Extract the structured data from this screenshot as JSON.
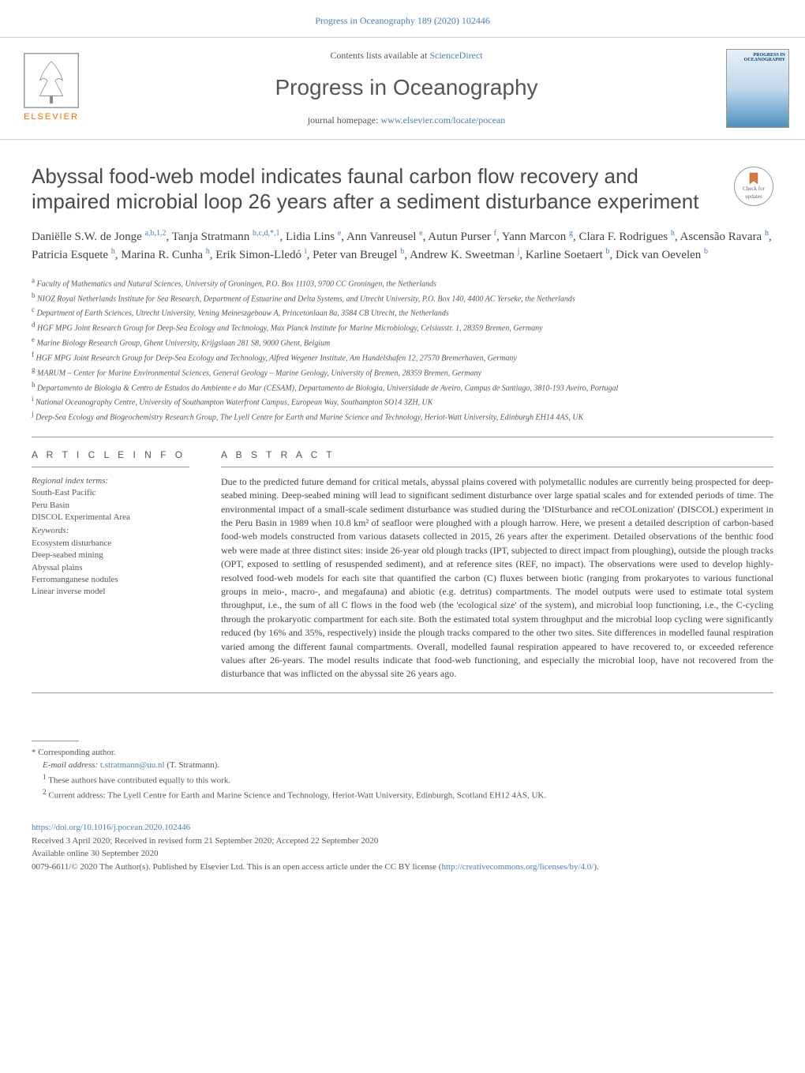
{
  "top_citation": "Progress in Oceanography 189 (2020) 102446",
  "header": {
    "contents_prefix": "Contents lists available at ",
    "contents_link": "ScienceDirect",
    "journal": "Progress in Oceanography",
    "homepage_prefix": "journal homepage: ",
    "homepage_url": "www.elsevier.com/locate/pocean",
    "publisher": "ELSEVIER",
    "cover_label": "PROGRESS IN OCEANOGRAPHY"
  },
  "updates_badge": {
    "line1": "Check for",
    "line2": "updates"
  },
  "title": "Abyssal food-web model indicates faunal carbon flow recovery and impaired microbial loop 26 years after a sediment disturbance experiment",
  "authors_html": "Daniëlle S.W. de Jonge <sup>a,b,1,2</sup>, Tanja Stratmann <sup>b,c,d,*,1</sup>, Lidia Lins <sup>e</sup>, Ann Vanreusel <sup>e</sup>, Autun Purser <sup>f</sup>, Yann Marcon <sup>g</sup>, Clara F. Rodrigues <sup>h</sup>, Ascensão Ravara <sup>h</sup>, Patricia Esquete <sup>h</sup>, Marina R. Cunha <sup>h</sup>, Erik Simon-Lledó <sup>i</sup>, Peter van Breugel <sup>b</sup>, Andrew K. Sweetman <sup>j</sup>, Karline Soetaert <sup>b</sup>, Dick van Oevelen <sup>b</sup>",
  "affiliations": [
    {
      "sup": "a",
      "text": " Faculty of Mathematics and Natural Sciences, University of Groningen, P.O. Box 11103, 9700 CC Groningen, the Netherlands"
    },
    {
      "sup": "b",
      "text": " NIOZ Royal Netherlands Institute for Sea Research, Department of Estuarine and Delta Systems, and Utrecht University, P.O. Box 140, 4400 AC Yerseke, the Netherlands"
    },
    {
      "sup": "c",
      "text": " Department of Earth Sciences, Utrecht University, Vening Meineszgebouw A, Princetonlaan 8a, 3584 CB Utrecht, the Netherlands"
    },
    {
      "sup": "d",
      "text": " HGF MPG Joint Research Group for Deep-Sea Ecology and Technology, Max Planck Institute for Marine Microbiology, Celsiusstr. 1, 28359 Bremen, Germany"
    },
    {
      "sup": "e",
      "text": " Marine Biology Research Group, Ghent University, Krijgslaan 281 S8, 9000 Ghent, Belgium"
    },
    {
      "sup": "f",
      "text": " HGF MPG Joint Research Group for Deep-Sea Ecology and Technology, Alfred Wegener Institute, Am Handelshafen 12, 27570 Bremerhaven, Germany"
    },
    {
      "sup": "g",
      "text": " MARUM – Center for Marine Environmental Sciences, General Geology – Marine Geology, University of Bremen, 28359 Bremen, Germany"
    },
    {
      "sup": "h",
      "text": " Departamento de Biologia & Centro de Estudos do Ambiente e do Mar (CESAM), Departamento de Biologia, Universidade de Aveiro, Campus de Santiago, 3810-193 Aveiro, Portugal"
    },
    {
      "sup": "i",
      "text": " National Oceanography Centre, University of Southampton Waterfront Campus, European Way, Southampton SO14 3ZH, UK"
    },
    {
      "sup": "j",
      "text": " Deep-Sea Ecology and Biogeochemistry Research Group, The Lyell Centre for Earth and Marine Science and Technology, Heriot-Watt University, Edinburgh EH14 4AS, UK"
    }
  ],
  "article_info_head": "A R T I C L E  I N F O",
  "abstract_head": "A B S T R A C T",
  "regional_label": "Regional index terms:",
  "regional_terms": [
    "South-East Pacific",
    "Peru Basin",
    "DISCOL Experimental Area"
  ],
  "keywords_label": "Keywords:",
  "keywords": [
    "Ecosystem disturbance",
    "Deep-seabed mining",
    "Abyssal plains",
    "Ferromanganese nodules",
    "Linear inverse model"
  ],
  "abstract": "Due to the predicted future demand for critical metals, abyssal plains covered with polymetallic nodules are currently being prospected for deep-seabed mining. Deep-seabed mining will lead to significant sediment disturbance over large spatial scales and for extended periods of time. The environmental impact of a small-scale sediment disturbance was studied during the 'DISturbance and reCOLonization' (DISCOL) experiment in the Peru Basin in 1989 when 10.8 km² of seafloor were ploughed with a plough harrow. Here, we present a detailed description of carbon-based food-web models constructed from various datasets collected in 2015, 26 years after the experiment. Detailed observations of the benthic food web were made at three distinct sites: inside 26-year old plough tracks (IPT, subjected to direct impact from ploughing), outside the plough tracks (OPT, exposed to settling of resuspended sediment), and at reference sites (REF, no impact). The observations were used to develop highly-resolved food-web models for each site that quantified the carbon (C) fluxes between biotic (ranging from prokaryotes to various functional groups in meio-, macro-, and megafauna) and abiotic (e.g. detritus) compartments. The model outputs were used to estimate total system throughput, i.e., the sum of all C flows in the food web (the 'ecological size' of the system), and microbial loop functioning, i.e., the C-cycling through the prokaryotic compartment for each site. Both the estimated total system throughput and the microbial loop cycling were significantly reduced (by 16% and 35%, respectively) inside the plough tracks compared to the other two sites. Site differences in modelled faunal respiration varied among the different faunal compartments. Overall, modelled faunal respiration appeared to have recovered to, or exceeded reference values after 26-years. The model results indicate that food-web functioning, and especially the microbial loop, have not recovered from the disturbance that was inflicted on the abyssal site 26 years ago.",
  "corresponding": {
    "label": "* Corresponding author.",
    "email_label": "E-mail address: ",
    "email": "t.stratmann@uu.nl",
    "email_suffix": " (T. Stratmann).",
    "note1_sup": "1",
    "note1": " These authors have contributed equally to this work.",
    "note2_sup": "2",
    "note2": " Current address: The Lyell Centre for Earth and Marine Science and Technology, Heriot-Watt University, Edinburgh, Scotland EH12 4AS, UK."
  },
  "footer": {
    "doi": "https://doi.org/10.1016/j.pocean.2020.102446",
    "received": "Received 3 April 2020; Received in revised form 21 September 2020; Accepted 22 September 2020",
    "available": "Available online 30 September 2020",
    "copyright_prefix": "0079-6611/© 2020 The Author(s). Published by Elsevier Ltd. This is an open access article under the CC BY license (",
    "copyright_link": "http://creativecommons.org/licenses/by/4.0/",
    "copyright_suffix": ")."
  }
}
